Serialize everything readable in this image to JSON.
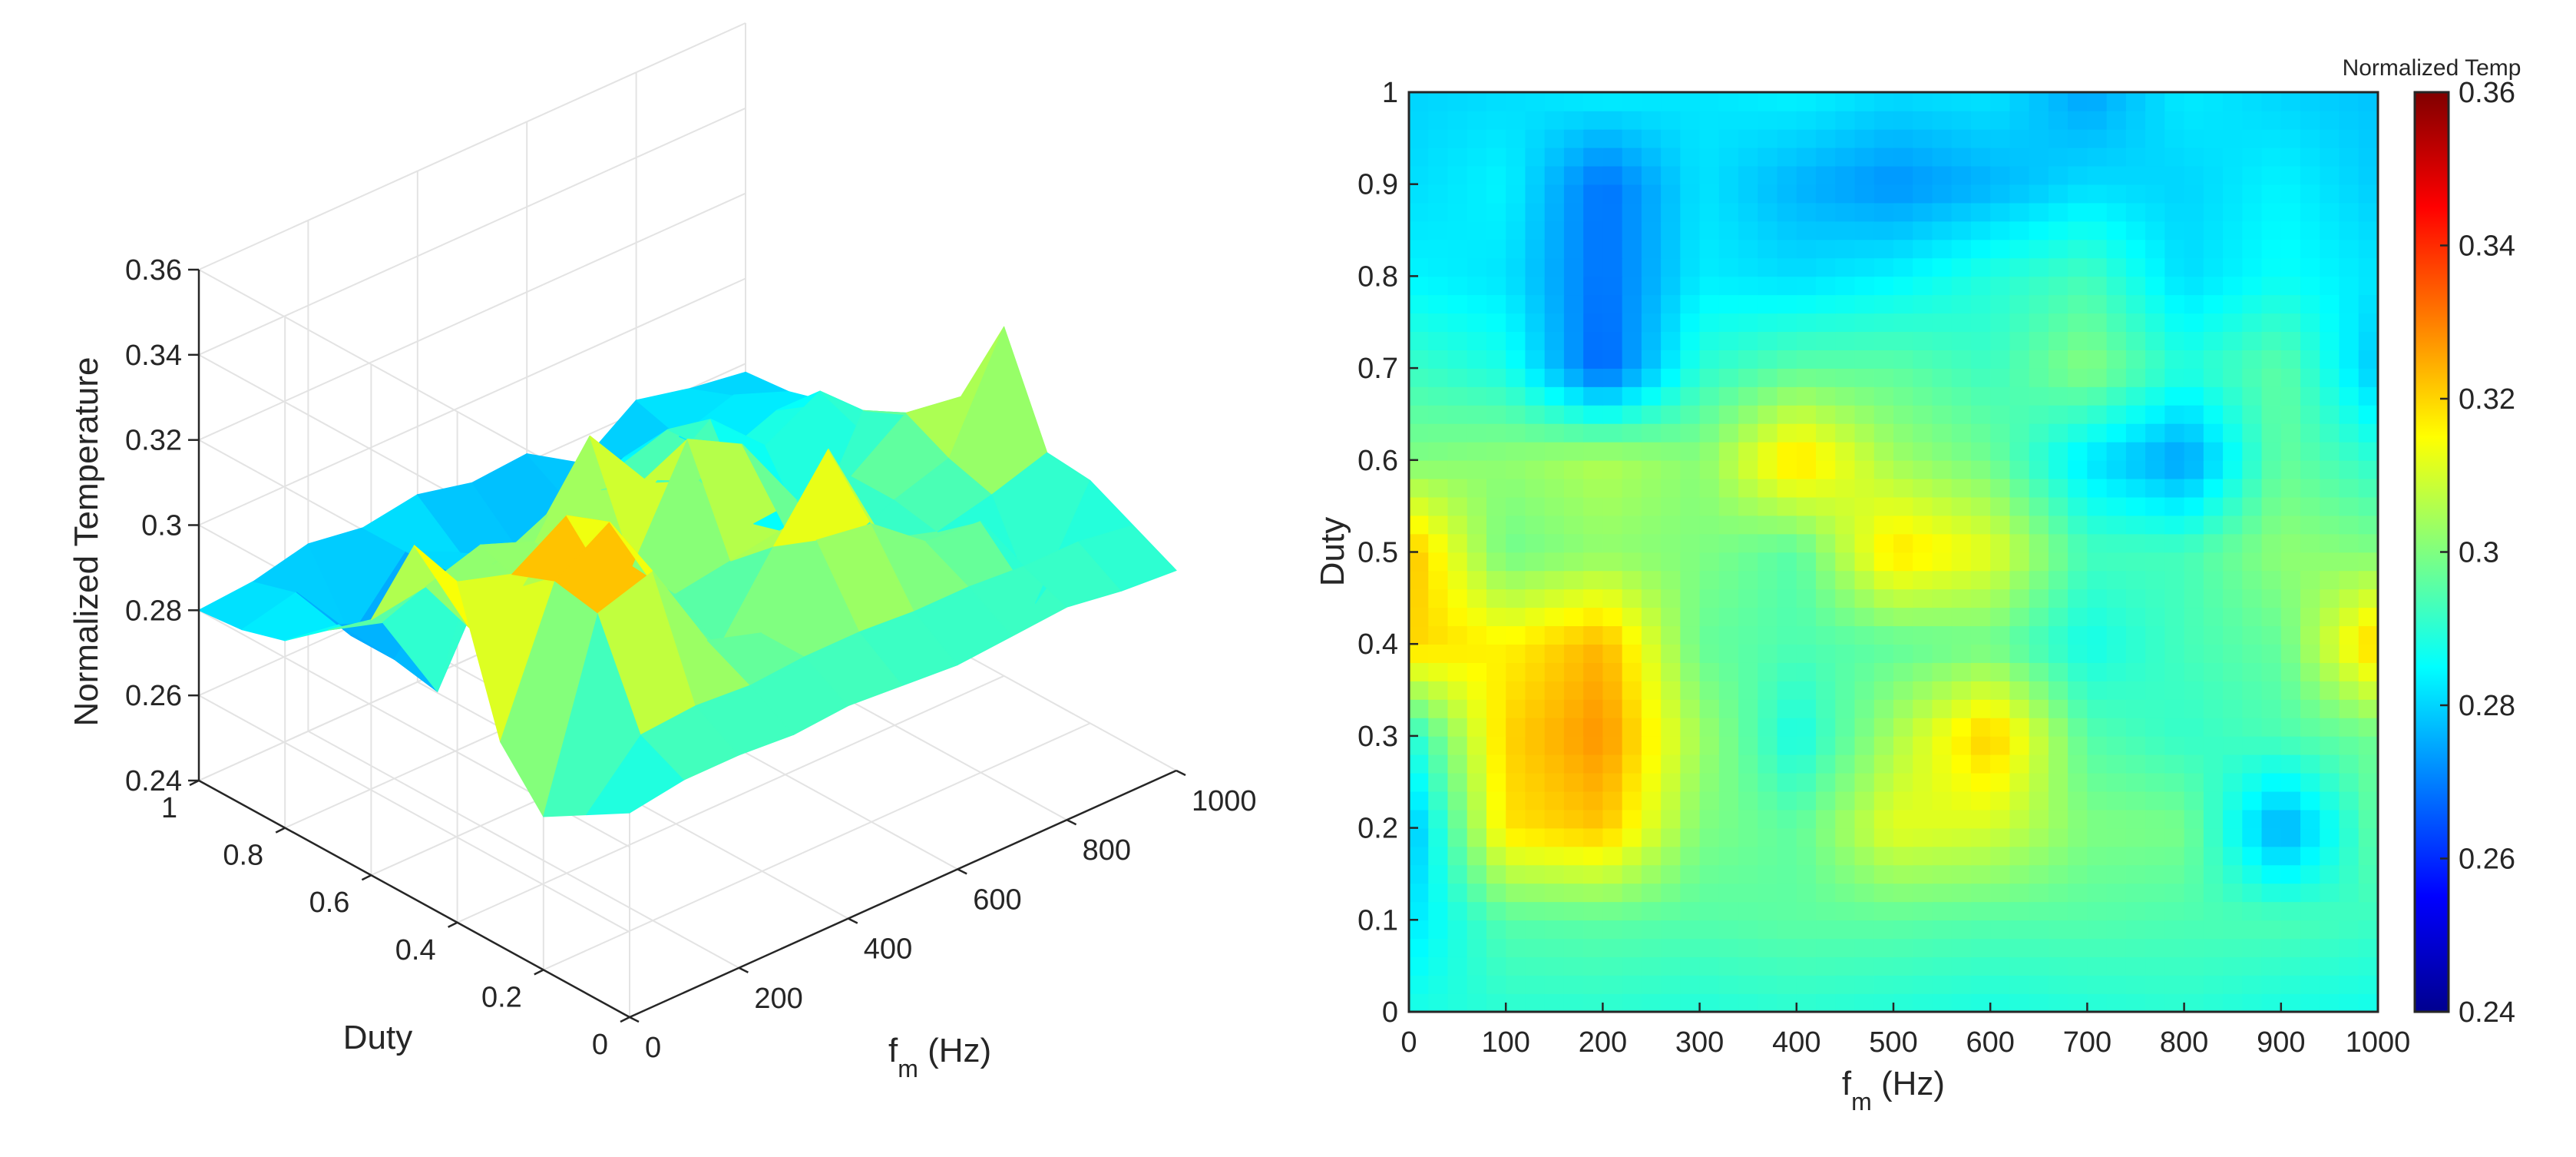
{
  "chart_data": [
    {
      "type": "surface",
      "panel": "left",
      "xlabel_main": "f",
      "xlabel_sub": "m",
      "xlabel_unit": " (Hz)",
      "ylabel": "Duty",
      "zlabel": "Normalized Temperature",
      "xlim": [
        0,
        1000
      ],
      "ylim": [
        0,
        1
      ],
      "zlim": [
        0.24,
        0.36
      ],
      "xticks": [
        "0",
        "200",
        "400",
        "600",
        "800",
        "1000"
      ],
      "yticks": [
        "0",
        "0.2",
        "0.4",
        "0.6",
        "0.8",
        "1"
      ],
      "zticks": [
        "0.24",
        "0.26",
        "0.28",
        "0.3",
        "0.32",
        "0.34",
        "0.36"
      ],
      "grid": true,
      "colormap": "jet",
      "x": [
        0,
        100,
        200,
        300,
        400,
        500,
        600,
        700,
        800,
        900,
        1000
      ],
      "y": [
        0,
        0.1,
        0.2,
        0.3,
        0.4,
        0.5,
        0.6,
        0.7,
        0.8,
        0.9,
        1.0
      ],
      "z": [
        [
          0.288,
          0.29,
          0.29,
          0.289,
          0.29,
          0.289,
          0.288,
          0.289,
          0.29,
          0.288,
          0.287
        ],
        [
          0.282,
          0.295,
          0.296,
          0.295,
          0.296,
          0.296,
          0.295,
          0.295,
          0.294,
          0.294,
          0.292
        ],
        [
          0.276,
          0.318,
          0.322,
          0.3,
          0.296,
          0.312,
          0.31,
          0.3,
          0.299,
          0.274,
          0.297
        ],
        [
          0.288,
          0.32,
          0.328,
          0.304,
          0.287,
          0.305,
          0.322,
          0.295,
          0.291,
          0.294,
          0.298
        ],
        [
          0.32,
          0.316,
          0.324,
          0.297,
          0.294,
          0.296,
          0.298,
          0.287,
          0.293,
          0.297,
          0.322
        ],
        [
          0.323,
          0.298,
          0.302,
          0.3,
          0.295,
          0.319,
          0.312,
          0.293,
          0.293,
          0.302,
          0.3
        ],
        [
          0.3,
          0.302,
          0.306,
          0.301,
          0.32,
          0.304,
          0.298,
          0.282,
          0.273,
          0.297,
          0.29
        ],
        [
          0.292,
          0.288,
          0.266,
          0.29,
          0.296,
          0.296,
          0.292,
          0.301,
          0.289,
          0.296,
          0.278
        ],
        [
          0.284,
          0.282,
          0.268,
          0.283,
          0.281,
          0.284,
          0.289,
          0.293,
          0.281,
          0.286,
          0.282
        ],
        [
          0.281,
          0.284,
          0.268,
          0.282,
          0.276,
          0.272,
          0.276,
          0.281,
          0.28,
          0.284,
          0.279
        ],
        [
          0.28,
          0.281,
          0.284,
          0.282,
          0.284,
          0.281,
          0.282,
          0.274,
          0.283,
          0.28,
          0.278
        ]
      ]
    },
    {
      "type": "heatmap",
      "panel": "right",
      "xlabel_main": "f",
      "xlabel_sub": "m",
      "xlabel_unit": " (Hz)",
      "ylabel": "Duty",
      "xlim": [
        0,
        1000
      ],
      "ylim": [
        0,
        1
      ],
      "xticks": [
        "0",
        "100",
        "200",
        "300",
        "400",
        "500",
        "600",
        "700",
        "800",
        "900",
        "1000"
      ],
      "yticks": [
        "0",
        "0.1",
        "0.2",
        "0.3",
        "0.4",
        "0.5",
        "0.6",
        "0.7",
        "0.8",
        "0.9",
        "1"
      ],
      "colorbar_title": "Normalized Temp",
      "colorbar_ticks": [
        "0.24",
        "0.26",
        "0.28",
        "0.3",
        "0.32",
        "0.34",
        "0.36"
      ],
      "clim": [
        0.24,
        0.36
      ],
      "colormap": "jet",
      "shading": "interp",
      "same_grid_as": "left"
    }
  ]
}
